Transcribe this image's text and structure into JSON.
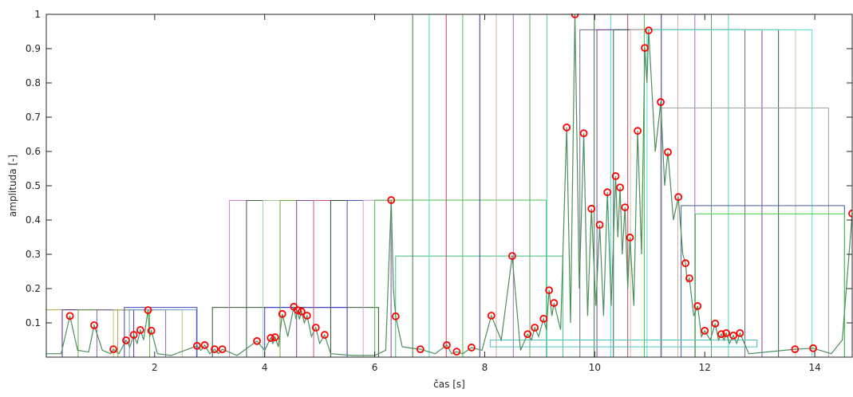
{
  "chart_data": {
    "type": "line",
    "x_label": "čas [s]",
    "y_label": "amplituda [-]",
    "xlim": [
      0.03,
      14.68
    ],
    "ylim": [
      0,
      1
    ],
    "xticks": [
      2,
      4,
      6,
      8,
      10,
      12,
      14
    ],
    "yticks": [
      0.1,
      0.2,
      0.3,
      0.4,
      0.5,
      0.6,
      0.7,
      0.8,
      0.9,
      1
    ],
    "line": {
      "color": "#4d8f5c",
      "x": [
        0.03,
        0.3,
        0.46,
        0.6,
        0.8,
        0.9,
        1.05,
        1.2,
        1.25,
        1.35,
        1.48,
        1.55,
        1.62,
        1.68,
        1.74,
        1.8,
        1.88,
        1.91,
        1.94,
        2.05,
        2.3,
        2.77,
        2.84,
        2.91,
        3.0,
        3.09,
        3.16,
        3.23,
        3.5,
        3.86,
        4.0,
        4.11,
        4.15,
        4.19,
        4.25,
        4.32,
        4.42,
        4.53,
        4.57,
        4.6,
        4.63,
        4.67,
        4.72,
        4.77,
        4.85,
        4.93,
        5.0,
        5.09,
        5.2,
        5.6,
        6.0,
        6.2,
        6.3,
        6.34,
        6.38,
        6.5,
        6.83,
        7.1,
        7.31,
        7.4,
        7.49,
        7.6,
        7.76,
        7.95,
        8.12,
        8.3,
        8.5,
        8.65,
        8.78,
        8.85,
        8.91,
        8.98,
        9.07,
        9.12,
        9.17,
        9.22,
        9.26,
        9.38,
        9.49,
        9.56,
        9.64,
        9.72,
        9.8,
        9.87,
        9.94,
        10.02,
        10.09,
        10.16,
        10.23,
        10.3,
        10.38,
        10.42,
        10.46,
        10.5,
        10.55,
        10.6,
        10.64,
        10.71,
        10.78,
        10.85,
        10.91,
        10.95,
        10.98,
        11.1,
        11.2,
        11.27,
        11.33,
        11.43,
        11.52,
        11.6,
        11.65,
        11.68,
        11.72,
        11.8,
        11.87,
        11.94,
        12.0,
        12.1,
        12.19,
        12.25,
        12.3,
        12.35,
        12.39,
        12.45,
        12.52,
        12.58,
        12.64,
        12.8,
        13.64,
        13.97,
        14.3,
        14.5,
        14.68
      ],
      "y": [
        0.01,
        0.01,
        0.12,
        0.02,
        0.015,
        0.093,
        0.02,
        0.01,
        0.023,
        0.01,
        0.049,
        0.03,
        0.065,
        0.04,
        0.079,
        0.05,
        0.137,
        0.06,
        0.077,
        0.01,
        0.005,
        0.033,
        0.02,
        0.035,
        0.01,
        0.023,
        0.01,
        0.023,
        0.005,
        0.047,
        0.02,
        0.056,
        0.04,
        0.058,
        0.03,
        0.126,
        0.06,
        0.147,
        0.11,
        0.137,
        0.11,
        0.133,
        0.1,
        0.121,
        0.06,
        0.086,
        0.04,
        0.065,
        0.01,
        0.005,
        0.005,
        0.02,
        0.458,
        0.2,
        0.119,
        0.03,
        0.023,
        0.01,
        0.035,
        0.01,
        0.016,
        0.01,
        0.028,
        0.02,
        0.121,
        0.05,
        0.295,
        0.02,
        0.067,
        0.05,
        0.086,
        0.06,
        0.112,
        0.08,
        0.195,
        0.12,
        0.158,
        0.08,
        0.67,
        0.1,
        1.0,
        0.2,
        0.653,
        0.12,
        0.433,
        0.15,
        0.386,
        0.12,
        0.481,
        0.15,
        0.528,
        0.35,
        0.495,
        0.3,
        0.437,
        0.2,
        0.349,
        0.15,
        0.66,
        0.3,
        0.902,
        0.8,
        0.953,
        0.6,
        0.744,
        0.5,
        0.598,
        0.4,
        0.467,
        0.3,
        0.274,
        0.22,
        0.23,
        0.12,
        0.149,
        0.06,
        0.077,
        0.05,
        0.098,
        0.05,
        0.067,
        0.05,
        0.07,
        0.04,
        0.063,
        0.04,
        0.07,
        0.01,
        0.023,
        0.026,
        0.01,
        0.05,
        0.419
      ]
    },
    "peaks": {
      "color": "#ff0000",
      "x": [
        0.46,
        0.9,
        1.25,
        1.48,
        1.62,
        1.74,
        1.88,
        1.94,
        2.77,
        2.91,
        3.09,
        3.23,
        3.86,
        4.11,
        4.19,
        4.32,
        4.53,
        4.6,
        4.67,
        4.77,
        4.93,
        5.09,
        6.3,
        6.38,
        6.83,
        7.31,
        7.49,
        7.76,
        8.12,
        8.5,
        8.78,
        8.91,
        9.07,
        9.17,
        9.26,
        9.49,
        9.64,
        9.8,
        9.94,
        10.09,
        10.23,
        10.38,
        10.46,
        10.55,
        10.64,
        10.78,
        10.91,
        10.98,
        11.2,
        11.33,
        11.52,
        11.65,
        11.72,
        11.87,
        12.0,
        12.19,
        12.3,
        12.39,
        12.52,
        12.64,
        13.64,
        13.97,
        14.68
      ],
      "y": [
        0.12,
        0.093,
        0.023,
        0.049,
        0.065,
        0.079,
        0.137,
        0.077,
        0.033,
        0.035,
        0.023,
        0.023,
        0.047,
        0.056,
        0.058,
        0.126,
        0.147,
        0.137,
        0.133,
        0.121,
        0.086,
        0.065,
        0.458,
        0.119,
        0.023,
        0.035,
        0.016,
        0.028,
        0.121,
        0.295,
        0.067,
        0.086,
        0.112,
        0.195,
        0.158,
        0.67,
        1.0,
        0.653,
        0.433,
        0.386,
        0.481,
        0.528,
        0.495,
        0.437,
        0.349,
        0.66,
        0.902,
        0.953,
        0.744,
        0.598,
        0.467,
        0.274,
        0.23,
        0.149,
        0.077,
        0.098,
        0.067,
        0.07,
        0.063,
        0.07,
        0.023,
        0.026,
        0.419
      ]
    },
    "windows": [
      {
        "x": [
          0.03,
          1.33
        ],
        "y": [
          0,
          0.138
        ],
        "color": "#b8a04a"
      },
      {
        "x": [
          0.32,
          1.62
        ],
        "y": [
          0,
          0.138
        ],
        "color": "#5a2a8a"
      },
      {
        "x": [
          0.61,
          1.91
        ],
        "y": [
          0,
          0.138
        ],
        "color": "#6ab04a"
      },
      {
        "x": [
          0.95,
          2.2
        ],
        "y": [
          0,
          0.138
        ],
        "color": "#8a6aa0"
      },
      {
        "x": [
          1.25,
          2.5
        ],
        "y": [
          0,
          0.138
        ],
        "color": "#c0c070"
      },
      {
        "x": [
          1.54,
          2.76
        ],
        "y": [
          0,
          0.138
        ],
        "color": "#6aa0d0"
      },
      {
        "x": [
          1.45,
          2.77
        ],
        "y": [
          0,
          0.145
        ],
        "color": "#4040c0"
      },
      {
        "x": [
          3.05,
          6.07
        ],
        "y": [
          0,
          0.145
        ],
        "color": "#2a5a2a"
      },
      {
        "x": [
          4.0,
          5.5
        ],
        "y": [
          0,
          0.145
        ],
        "color": "#3a3ad0"
      },
      {
        "x": [
          3.36,
          6.3
        ],
        "y": [
          0,
          0.457
        ],
        "color": "#d080d0"
      },
      {
        "x": [
          3.67,
          6.3
        ],
        "y": [
          0,
          0.457
        ],
        "color": "#405a40"
      },
      {
        "x": [
          3.97,
          6.3
        ],
        "y": [
          0,
          0.457
        ],
        "color": "#a0d0a0"
      },
      {
        "x": [
          4.28,
          6.3
        ],
        "y": [
          0,
          0.457
        ],
        "color": "#70a040"
      },
      {
        "x": [
          4.58,
          6.3
        ],
        "y": [
          0,
          0.457
        ],
        "color": "#8040a0"
      },
      {
        "x": [
          4.89,
          6.3
        ],
        "y": [
          0,
          0.457
        ],
        "color": "#d05080"
      },
      {
        "x": [
          5.2,
          6.3
        ],
        "y": [
          0,
          0.457
        ],
        "color": "#305030"
      },
      {
        "x": [
          5.5,
          6.3
        ],
        "y": [
          0,
          0.457
        ],
        "color": "#5050c0"
      },
      {
        "x": [
          5.79,
          6.3
        ],
        "y": [
          0,
          0.457
        ],
        "color": "#d0a0d0"
      },
      {
        "x": [
          6.0,
          9.12
        ],
        "y": [
          0,
          0.458
        ],
        "color": "#50c050"
      },
      {
        "x": [
          6.38,
          9.42
        ],
        "y": [
          0,
          0.295
        ],
        "color": "#40c080"
      },
      {
        "x": [
          6.69,
          9.99
        ],
        "y": [
          0,
          1
        ],
        "color": "#3a7a3a"
      },
      {
        "x": [
          6.99,
          10.29
        ],
        "y": [
          0,
          1
        ],
        "color": "#40e0d0"
      },
      {
        "x": [
          7.3,
          10.6
        ],
        "y": [
          0,
          1
        ],
        "color": "#c04060"
      },
      {
        "x": [
          7.6,
          10.9
        ],
        "y": [
          0,
          1
        ],
        "color": "#40c040"
      },
      {
        "x": [
          7.91,
          11.21
        ],
        "y": [
          0,
          1
        ],
        "color": "#3030a0"
      },
      {
        "x": [
          8.21,
          11.51
        ],
        "y": [
          0,
          1
        ],
        "color": "#d0b0a0"
      },
      {
        "x": [
          8.52,
          11.82
        ],
        "y": [
          0,
          1
        ],
        "color": "#a070c0"
      },
      {
        "x": [
          8.82,
          12.12
        ],
        "y": [
          0,
          1
        ],
        "color": "#60a060"
      },
      {
        "x": [
          9.13,
          12.43
        ],
        "y": [
          0,
          1
        ],
        "color": "#50d0c0"
      },
      {
        "x": [
          9.73,
          12.73
        ],
        "y": [
          0,
          0.955
        ],
        "color": "#6a6a8a"
      },
      {
        "x": [
          10.04,
          13.04
        ],
        "y": [
          0,
          0.955
        ],
        "color": "#8040a0"
      },
      {
        "x": [
          10.34,
          13.34
        ],
        "y": [
          0,
          0.955
        ],
        "color": "#306060"
      },
      {
        "x": [
          10.65,
          13.65
        ],
        "y": [
          0,
          0.955
        ],
        "color": "#d0c0a0"
      },
      {
        "x": [
          10.95,
          13.95
        ],
        "y": [
          0,
          0.955
        ],
        "color": "#50e0d0"
      },
      {
        "x": [
          11.2,
          14.25
        ],
        "y": [
          0,
          0.727
        ],
        "color": "#a0a0a0"
      },
      {
        "x": [
          11.57,
          14.54
        ],
        "y": [
          0,
          0.442
        ],
        "color": "#4060a0"
      },
      {
        "x": [
          11.83,
          14.54
        ],
        "y": [
          0,
          0.418
        ],
        "color": "#40d040"
      },
      {
        "x": [
          8.1,
          12.95
        ],
        "y": [
          0.03,
          0.05
        ],
        "color": "#50c0c0"
      }
    ]
  }
}
